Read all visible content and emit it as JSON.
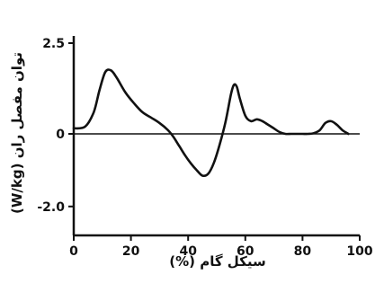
{
  "chart_data": {
    "type": "line",
    "title": "",
    "xlabel": "سیکل گام (%)",
    "ylabel": "توان مفصل ران (W/kg)",
    "xlim": [
      0,
      100
    ],
    "ylim": [
      -2.0,
      2.5
    ],
    "x_ticks": [
      "0",
      "20",
      "40",
      "60",
      "80",
      "100"
    ],
    "y_ticks": [
      "2.5",
      "0",
      "-2.0"
    ],
    "grid": false,
    "legend": "none",
    "zero_line": true,
    "line_color": "#111111",
    "series": [
      {
        "x": [
          0,
          4,
          7,
          9,
          11,
          13,
          15,
          18,
          21,
          24,
          27,
          30,
          33,
          35,
          37,
          39,
          41,
          43,
          45,
          47,
          49,
          51,
          53,
          55,
          56,
          57,
          58,
          60,
          62,
          64,
          66,
          68,
          70,
          72,
          74,
          76,
          78,
          80,
          82,
          84,
          86,
          88,
          90,
          92,
          94,
          96
        ],
        "y": [
          0.15,
          0.2,
          0.6,
          1.2,
          1.7,
          1.75,
          1.55,
          1.15,
          0.85,
          0.6,
          0.45,
          0.3,
          0.1,
          -0.1,
          -0.35,
          -0.6,
          -0.82,
          -1.0,
          -1.15,
          -1.1,
          -0.8,
          -0.3,
          0.3,
          1.1,
          1.35,
          1.3,
          1.0,
          0.5,
          0.35,
          0.4,
          0.35,
          0.25,
          0.15,
          0.05,
          0.0,
          0.0,
          0.0,
          0.0,
          0.0,
          0.02,
          0.1,
          0.3,
          0.35,
          0.25,
          0.1,
          0.0
        ]
      }
    ]
  }
}
